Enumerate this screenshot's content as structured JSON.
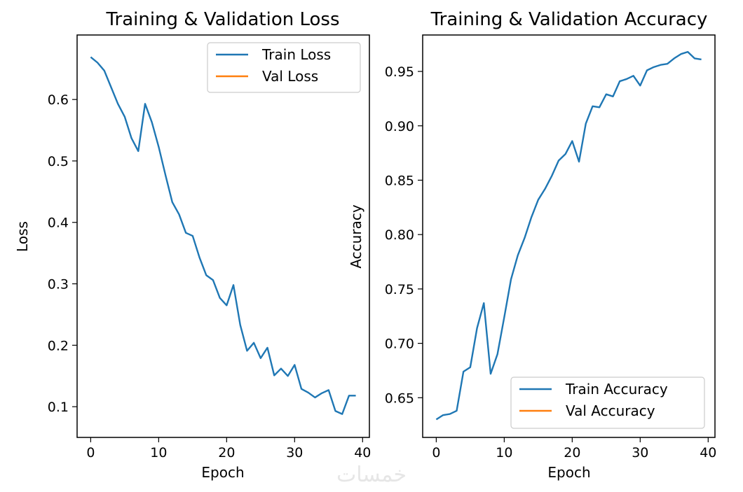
{
  "colors": {
    "train": "#1f77b4",
    "val": "#ff7f0e",
    "axis": "#000000",
    "legend_border": "#cccccc"
  },
  "watermark": "خمسات",
  "chart_data": [
    {
      "type": "line",
      "title": "Training & Validation Loss",
      "xlabel": "Epoch",
      "ylabel": "Loss",
      "xlim": [
        -2,
        41
      ],
      "ylim": [
        0.05,
        0.705
      ],
      "xticks": [
        0,
        10,
        20,
        30,
        40
      ],
      "xtick_labels": [
        "0",
        "10",
        "20",
        "30",
        "40"
      ],
      "yticks": [
        0.1,
        0.2,
        0.3,
        0.4,
        0.5,
        0.6
      ],
      "ytick_labels": [
        "0.1",
        "0.2",
        "0.3",
        "0.4",
        "0.5",
        "0.6"
      ],
      "grid": false,
      "legend": "top-right",
      "series": [
        {
          "name": "Train Loss",
          "color": "#1f77b4",
          "x": [
            0,
            1,
            2,
            3,
            4,
            5,
            6,
            7,
            8,
            9,
            10,
            11,
            12,
            13,
            14,
            15,
            16,
            17,
            18,
            19,
            20,
            21,
            22,
            23,
            24,
            25,
            26,
            27,
            28,
            29,
            30,
            31,
            32,
            33,
            34,
            35,
            36,
            37,
            38,
            39
          ],
          "y": [
            0.669,
            0.66,
            0.647,
            0.62,
            0.593,
            0.572,
            0.537,
            0.516,
            0.593,
            0.563,
            0.523,
            0.477,
            0.433,
            0.413,
            0.383,
            0.378,
            0.343,
            0.314,
            0.306,
            0.277,
            0.265,
            0.298,
            0.233,
            0.191,
            0.204,
            0.179,
            0.196,
            0.151,
            0.162,
            0.15,
            0.168,
            0.129,
            0.123,
            0.115,
            0.122,
            0.127,
            0.093,
            0.088,
            0.118,
            0.118
          ]
        },
        {
          "name": "Val Loss",
          "color": "#ff7f0e",
          "x": [],
          "y": []
        }
      ]
    },
    {
      "type": "line",
      "title": "Training & Validation Accuracy",
      "xlabel": "Epoch",
      "ylabel": "Accuracy",
      "xlim": [
        -2,
        41
      ],
      "ylim": [
        0.6135,
        0.9835
      ],
      "xticks": [
        0,
        10,
        20,
        30,
        40
      ],
      "xtick_labels": [
        "0",
        "10",
        "20",
        "30",
        "40"
      ],
      "yticks": [
        0.65,
        0.7,
        0.75,
        0.8,
        0.85,
        0.9,
        0.95
      ],
      "ytick_labels": [
        "0.65",
        "0.70",
        "0.75",
        "0.80",
        "0.85",
        "0.90",
        "0.95"
      ],
      "grid": false,
      "legend": "bottom-right",
      "series": [
        {
          "name": "Train Accuracy",
          "color": "#1f77b4",
          "x": [
            0,
            1,
            2,
            3,
            4,
            5,
            6,
            7,
            8,
            9,
            10,
            11,
            12,
            13,
            14,
            15,
            16,
            17,
            18,
            19,
            20,
            21,
            22,
            23,
            24,
            25,
            26,
            27,
            28,
            29,
            30,
            31,
            32,
            33,
            34,
            35,
            36,
            37,
            38,
            39
          ],
          "y": [
            0.63,
            0.634,
            0.635,
            0.638,
            0.674,
            0.678,
            0.714,
            0.737,
            0.672,
            0.69,
            0.724,
            0.759,
            0.781,
            0.797,
            0.816,
            0.832,
            0.842,
            0.854,
            0.868,
            0.874,
            0.886,
            0.867,
            0.902,
            0.918,
            0.917,
            0.929,
            0.927,
            0.941,
            0.943,
            0.946,
            0.937,
            0.951,
            0.954,
            0.956,
            0.957,
            0.962,
            0.966,
            0.968,
            0.962,
            0.961
          ]
        },
        {
          "name": "Val Accuracy",
          "color": "#ff7f0e",
          "x": [],
          "y": []
        }
      ]
    }
  ]
}
